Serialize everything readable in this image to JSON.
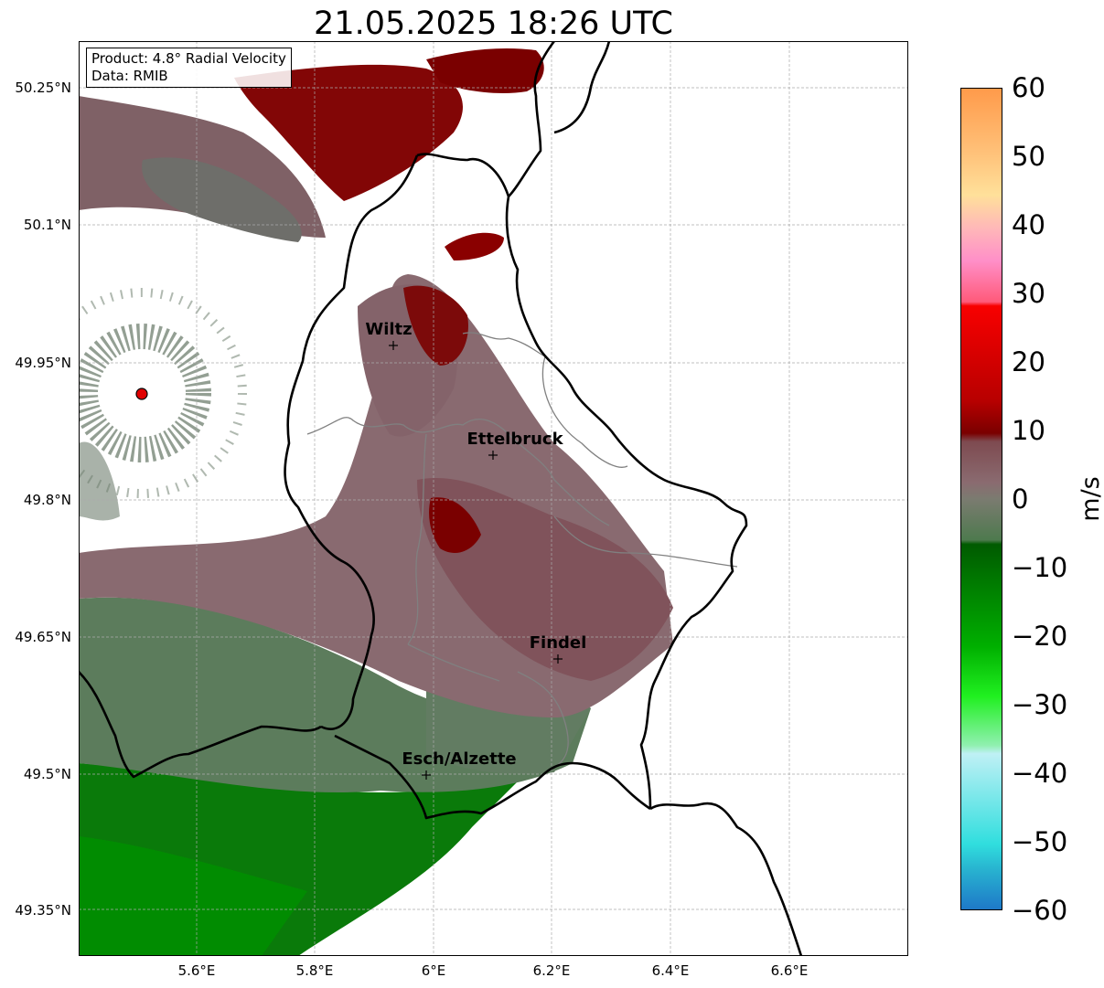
{
  "title": "21.05.2025 18:26 UTC",
  "info": {
    "product": "Product: 4.8° Radial Velocity",
    "source": "Data: RMIB"
  },
  "axes": {
    "y_ticks": [
      "50.25°N",
      "50.1°N",
      "49.95°N",
      "49.8°N",
      "49.65°N",
      "49.5°N",
      "49.35°N"
    ],
    "x_ticks": [
      "5.6°E",
      "5.8°E",
      "6°E",
      "6.2°E",
      "6.4°E",
      "6.6°E"
    ]
  },
  "cities": [
    {
      "name": "Wiltz",
      "lon": 5.93,
      "lat": 49.97
    },
    {
      "name": "Ettelbruck",
      "lon": 6.1,
      "lat": 49.85
    },
    {
      "name": "Findel",
      "lon": 6.21,
      "lat": 49.63
    },
    {
      "name": "Esch/Alzette",
      "lon": 5.99,
      "lat": 49.5
    }
  ],
  "radar_site": {
    "lon": 5.505,
    "lat": 49.914
  },
  "colorbar": {
    "unit": "m/s",
    "min": -60,
    "max": 60,
    "ticks": [
      "60",
      "50",
      "40",
      "30",
      "20",
      "10",
      "0",
      "−10",
      "−20",
      "−30",
      "−40",
      "−50",
      "−60"
    ]
  },
  "colors": {
    "inbound_strong": "#007a00",
    "inbound_weak": "#5f7f5f",
    "near_zero": "#8a6b70",
    "outbound_weak": "#855058",
    "outbound_strong": "#7a0000",
    "border": "#000000",
    "canton": "#808080",
    "radar_marker": "#e00000"
  }
}
